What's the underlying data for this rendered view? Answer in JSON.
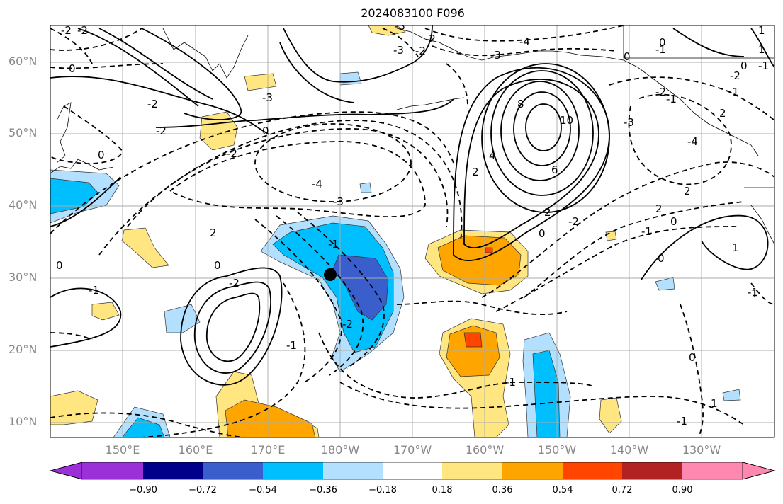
{
  "title": "2024083100 F096",
  "lat_labels": [
    "60°N",
    "50°N",
    "40°N",
    "30°N",
    "20°N",
    "10°N"
  ],
  "lon_labels": [
    "150°E",
    "160°E",
    "170°E",
    "180°W",
    "170°W",
    "160°W",
    "150°W",
    "140°W",
    "130°W"
  ],
  "colorbar": {
    "ticks": [
      "−0.90",
      "−0.72",
      "−0.54",
      "−0.36",
      "−0.18",
      "0.18",
      "0.36",
      "0.54",
      "0.72",
      "0.90"
    ],
    "colors": [
      "#9b30d9",
      "#00008b",
      "#3a5fcd",
      "#00bfff",
      "#b3e0ff",
      "#ffffff",
      "#ffe680",
      "#ffa500",
      "#ff4500",
      "#b22222",
      "#ff88b0"
    ]
  },
  "contour_labels": [
    "-2",
    "0",
    "-2",
    "-4",
    "-3",
    "0",
    "2",
    "-2",
    "-3",
    "-3",
    "-2",
    "0",
    "-2",
    "-4",
    "-3",
    "-1",
    "-1",
    "-2",
    "-1",
    "-2",
    "-1",
    "0",
    "-2",
    "0",
    "-3",
    "8",
    "10",
    "6",
    "4",
    "2",
    "2",
    "0",
    "-3",
    "-2",
    "0",
    "0",
    "2",
    "-1",
    "1",
    "-1",
    "2",
    "0",
    "1",
    "-1",
    "-1",
    "0",
    "1",
    "2",
    "-1",
    "-2",
    "-1",
    "0",
    "-4",
    "0",
    "1",
    "-2",
    "-2",
    "-1",
    "1"
  ],
  "marker": "storm-center"
}
